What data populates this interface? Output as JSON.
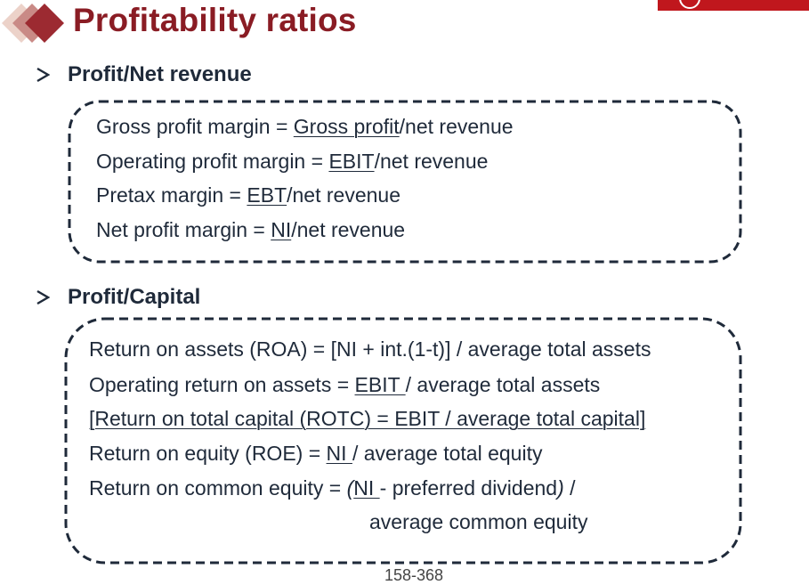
{
  "colors": {
    "title": "#8a1c24",
    "accent_bar": "#c0171d",
    "text": "#1f2a3a",
    "diamond_dark": "#9c2a31",
    "diamond_mid": "#c98a86",
    "diamond_light": "#ecd2c9"
  },
  "title": "Profitability ratios",
  "sections": [
    {
      "heading": "Profit/Net revenue",
      "lines": [
        {
          "a": "Gross profit margin = ",
          "u": "Gross profit",
          "b": "/net revenue"
        },
        {
          "a": "Operating profit margin = ",
          "u": "EBIT",
          "b": "/net revenue"
        },
        {
          "a": "Pretax margin = ",
          "u": "EBT",
          "b": "/net revenue"
        },
        {
          "a": "Net profit margin = ",
          "u": " NI",
          "b": "/net revenue"
        }
      ]
    },
    {
      "heading": "Profit/Capital",
      "lines": [
        {
          "full": "Return on assets (ROA) = [NI + int.(1-t)] / average total assets"
        },
        {
          "a": "Operating return  on assets = ",
          "u": "EBIT ",
          "b": "/ average total assets"
        },
        {
          "full_underlined": "[Return on total capital (ROTC) = EBIT / average total capital]"
        },
        {
          "a": "Return on equity (ROE) = ",
          "u": "NI ",
          "b": "/ average total equity"
        },
        {
          "a": "Return on common equity = ",
          "it1": "(",
          "u": "NI ",
          "b": "- preferred dividend",
          "it2": ")",
          "c": " /"
        },
        {
          "full": "average common equity"
        }
      ]
    }
  ],
  "footer": "158-368"
}
